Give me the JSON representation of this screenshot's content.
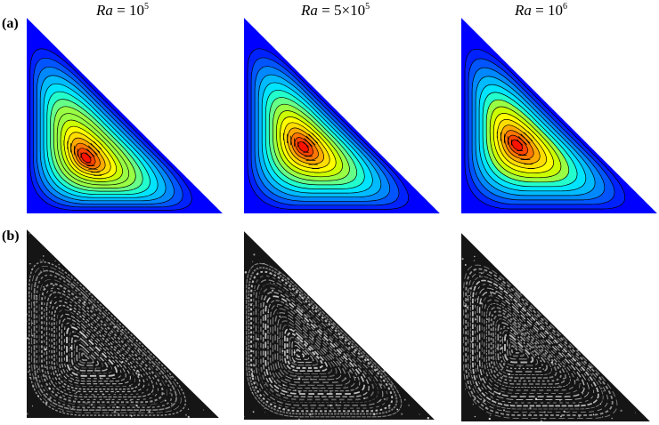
{
  "columns": [
    {
      "title_var": "Ra",
      "title_eq": " = ",
      "title_base": "10",
      "title_exp": "5"
    },
    {
      "title_var": "Ra",
      "title_eq": " = ",
      "title_base": "5×10",
      "title_exp": "5"
    },
    {
      "title_var": "Ra",
      "title_eq": " = ",
      "title_base": "10",
      "title_exp": "6"
    }
  ],
  "rows": [
    {
      "label": "(a)"
    },
    {
      "label": "(b)"
    }
  ],
  "panels_a": [
    {
      "center": [
        0.3,
        0.72
      ],
      "levels": 16
    },
    {
      "center": [
        0.3,
        0.66
      ],
      "levels": 15
    },
    {
      "center": [
        0.28,
        0.65
      ],
      "levels": 14
    }
  ],
  "colors": {
    "background": "#0000ff",
    "scale": [
      "#0000ff",
      "#0022ff",
      "#0055ff",
      "#0088ff",
      "#00bbff",
      "#00e5ff",
      "#22ffcc",
      "#66ff88",
      "#99ff44",
      "#ccff00",
      "#ffff00",
      "#ffdd00",
      "#ffaa00",
      "#ff7700",
      "#ff4400",
      "#ff1100"
    ]
  }
}
